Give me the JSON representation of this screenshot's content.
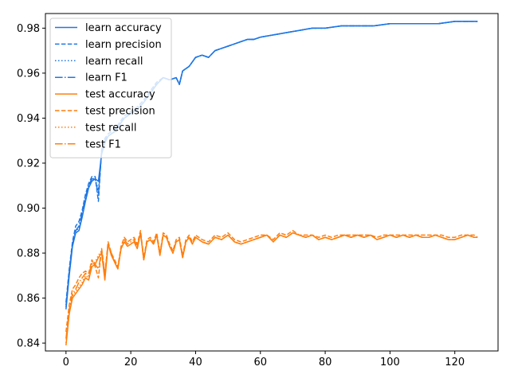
{
  "chart_data": {
    "type": "line",
    "xlim": [
      -6.35,
      133.35
    ],
    "ylim": [
      0.8365,
      0.9865
    ],
    "xticks": [
      0,
      20,
      40,
      60,
      80,
      100,
      120
    ],
    "yticks": [
      0.84,
      0.86,
      0.88,
      0.9,
      0.92,
      0.94,
      0.96,
      0.98
    ],
    "grid": false,
    "legend_position": "top-left",
    "colors": {
      "learn": "#1f77e4",
      "test": "#ff7f0e"
    },
    "series": [
      {
        "name": "learn accuracy",
        "color": "#1f77e4",
        "dash": "solid",
        "x": [
          0,
          1,
          2,
          3,
          4,
          5,
          6,
          7,
          8,
          9,
          10,
          11,
          12,
          13,
          14,
          15,
          16,
          18,
          20,
          22,
          24,
          26,
          28,
          30,
          32,
          34,
          35,
          36,
          38,
          40,
          42,
          44,
          46,
          48,
          50,
          52,
          54,
          56,
          58,
          60,
          64,
          68,
          72,
          76,
          80,
          85,
          90,
          95,
          100,
          105,
          110,
          115,
          120,
          127
        ],
        "y": [
          0.855,
          0.87,
          0.883,
          0.889,
          0.89,
          0.896,
          0.903,
          0.909,
          0.912,
          0.913,
          0.912,
          0.924,
          0.929,
          0.932,
          0.933,
          0.934,
          0.936,
          0.94,
          0.942,
          0.944,
          0.947,
          0.951,
          0.955,
          0.958,
          0.957,
          0.958,
          0.955,
          0.961,
          0.963,
          0.967,
          0.968,
          0.967,
          0.97,
          0.971,
          0.972,
          0.973,
          0.974,
          0.975,
          0.975,
          0.976,
          0.977,
          0.978,
          0.979,
          0.98,
          0.98,
          0.981,
          0.981,
          0.981,
          0.982,
          0.982,
          0.982,
          0.982,
          0.983,
          0.983
        ]
      },
      {
        "name": "learn precision",
        "color": "#1f77e4",
        "dash": "dashed",
        "x": [
          0,
          1,
          2,
          3,
          4,
          5,
          6,
          7,
          8,
          9,
          10,
          11,
          12,
          13,
          14,
          15,
          16,
          18,
          20,
          22,
          24,
          26,
          28,
          30,
          32,
          34,
          35,
          36,
          38,
          40,
          42,
          44,
          46,
          48,
          50,
          52,
          54,
          56,
          58,
          60,
          64,
          68,
          72,
          76,
          80,
          85,
          90,
          95,
          100,
          105,
          110,
          115,
          120,
          127
        ],
        "y": [
          0.858,
          0.873,
          0.885,
          0.892,
          0.894,
          0.899,
          0.906,
          0.911,
          0.914,
          0.914,
          0.903,
          0.926,
          0.931,
          0.933,
          0.934,
          0.935,
          0.937,
          0.941,
          0.943,
          0.945,
          0.948,
          0.952,
          0.956,
          0.958,
          0.957,
          0.958,
          0.955,
          0.961,
          0.963,
          0.967,
          0.968,
          0.967,
          0.97,
          0.971,
          0.972,
          0.973,
          0.974,
          0.975,
          0.975,
          0.976,
          0.977,
          0.978,
          0.979,
          0.98,
          0.98,
          0.981,
          0.981,
          0.981,
          0.982,
          0.982,
          0.982,
          0.982,
          0.983,
          0.983
        ]
      },
      {
        "name": "learn recall",
        "color": "#1f77e4",
        "dash": "dotted",
        "x": [
          0,
          1,
          2,
          3,
          4,
          5,
          6,
          7,
          8,
          9,
          10,
          11,
          12,
          13,
          14,
          15,
          16,
          18,
          20,
          22,
          24,
          26,
          28,
          30,
          32,
          34,
          35,
          36,
          38,
          40,
          42,
          44,
          46,
          48,
          50,
          52,
          54,
          56,
          58,
          60,
          64,
          68,
          72,
          76,
          80,
          85,
          90,
          95,
          100,
          105,
          110,
          115,
          120,
          127
        ],
        "y": [
          0.857,
          0.872,
          0.884,
          0.89,
          0.891,
          0.897,
          0.904,
          0.91,
          0.913,
          0.913,
          0.908,
          0.925,
          0.93,
          0.932,
          0.933,
          0.934,
          0.936,
          0.94,
          0.942,
          0.944,
          0.947,
          0.951,
          0.955,
          0.958,
          0.957,
          0.958,
          0.955,
          0.961,
          0.963,
          0.967,
          0.968,
          0.967,
          0.97,
          0.971,
          0.972,
          0.973,
          0.974,
          0.975,
          0.975,
          0.976,
          0.977,
          0.978,
          0.979,
          0.98,
          0.98,
          0.981,
          0.981,
          0.981,
          0.982,
          0.982,
          0.982,
          0.982,
          0.983,
          0.983
        ]
      },
      {
        "name": "learn F1",
        "color": "#1f77e4",
        "dash": "dashdot",
        "x": [
          0,
          1,
          2,
          3,
          4,
          5,
          6,
          7,
          8,
          9,
          10,
          11,
          12,
          13,
          14,
          15,
          16,
          18,
          20,
          22,
          24,
          26,
          28,
          30,
          32,
          34,
          35,
          36,
          38,
          40,
          42,
          44,
          46,
          48,
          50,
          52,
          54,
          56,
          58,
          60,
          64,
          68,
          72,
          76,
          80,
          85,
          90,
          95,
          100,
          105,
          110,
          115,
          120,
          127
        ],
        "y": [
          0.856,
          0.871,
          0.884,
          0.89,
          0.892,
          0.898,
          0.905,
          0.91,
          0.913,
          0.913,
          0.906,
          0.925,
          0.93,
          0.932,
          0.933,
          0.934,
          0.936,
          0.94,
          0.942,
          0.944,
          0.947,
          0.951,
          0.955,
          0.958,
          0.957,
          0.958,
          0.955,
          0.961,
          0.963,
          0.967,
          0.968,
          0.967,
          0.97,
          0.971,
          0.972,
          0.973,
          0.974,
          0.975,
          0.975,
          0.976,
          0.977,
          0.978,
          0.979,
          0.98,
          0.98,
          0.981,
          0.981,
          0.981,
          0.982,
          0.982,
          0.982,
          0.982,
          0.983,
          0.983
        ]
      },
      {
        "name": "test accuracy",
        "color": "#ff7f0e",
        "dash": "solid",
        "x": [
          0,
          1,
          2,
          3,
          4,
          5,
          6,
          7,
          8,
          9,
          10,
          11,
          12,
          13,
          14,
          15,
          16,
          17,
          18,
          19,
          20,
          21,
          22,
          23,
          24,
          25,
          26,
          27,
          28,
          29,
          30,
          31,
          32,
          33,
          34,
          35,
          36,
          37,
          38,
          39,
          40,
          42,
          44,
          46,
          48,
          50,
          52,
          54,
          56,
          58,
          60,
          62,
          64,
          66,
          68,
          70,
          72,
          74,
          76,
          78,
          80,
          82,
          84,
          86,
          88,
          90,
          92,
          94,
          96,
          98,
          100,
          102,
          104,
          106,
          108,
          110,
          112,
          114,
          116,
          118,
          120,
          122,
          124,
          126,
          127
        ],
        "y": [
          0.839,
          0.853,
          0.86,
          0.862,
          0.864,
          0.866,
          0.869,
          0.868,
          0.874,
          0.875,
          0.878,
          0.88,
          0.868,
          0.884,
          0.879,
          0.876,
          0.873,
          0.882,
          0.885,
          0.883,
          0.884,
          0.885,
          0.882,
          0.889,
          0.877,
          0.885,
          0.886,
          0.884,
          0.888,
          0.879,
          0.888,
          0.887,
          0.883,
          0.88,
          0.885,
          0.886,
          0.878,
          0.885,
          0.887,
          0.884,
          0.887,
          0.885,
          0.884,
          0.887,
          0.886,
          0.888,
          0.885,
          0.884,
          0.885,
          0.886,
          0.887,
          0.888,
          0.885,
          0.888,
          0.887,
          0.889,
          0.888,
          0.887,
          0.888,
          0.886,
          0.887,
          0.886,
          0.887,
          0.888,
          0.887,
          0.888,
          0.887,
          0.888,
          0.886,
          0.887,
          0.888,
          0.887,
          0.888,
          0.887,
          0.888,
          0.887,
          0.887,
          0.888,
          0.887,
          0.886,
          0.886,
          0.887,
          0.888,
          0.887,
          0.887
        ]
      },
      {
        "name": "test precision",
        "color": "#ff7f0e",
        "dash": "dashed",
        "x": [
          0,
          1,
          2,
          3,
          4,
          5,
          6,
          7,
          8,
          9,
          10,
          11,
          12,
          13,
          14,
          15,
          16,
          17,
          18,
          19,
          20,
          21,
          22,
          23,
          24,
          25,
          26,
          27,
          28,
          29,
          30,
          31,
          32,
          33,
          34,
          35,
          36,
          37,
          38,
          39,
          40,
          42,
          44,
          46,
          48,
          50,
          52,
          54,
          56,
          58,
          60,
          62,
          64,
          66,
          68,
          70,
          72,
          74,
          76,
          78,
          80,
          82,
          84,
          86,
          88,
          90,
          92,
          94,
          96,
          98,
          100,
          102,
          104,
          106,
          108,
          110,
          112,
          114,
          116,
          118,
          120,
          122,
          124,
          126,
          127
        ],
        "y": [
          0.845,
          0.857,
          0.864,
          0.866,
          0.869,
          0.871,
          0.872,
          0.871,
          0.877,
          0.874,
          0.869,
          0.882,
          0.871,
          0.885,
          0.88,
          0.877,
          0.874,
          0.883,
          0.887,
          0.885,
          0.886,
          0.887,
          0.884,
          0.89,
          0.878,
          0.886,
          0.887,
          0.885,
          0.889,
          0.88,
          0.889,
          0.888,
          0.884,
          0.881,
          0.886,
          0.887,
          0.879,
          0.886,
          0.888,
          0.885,
          0.888,
          0.886,
          0.885,
          0.888,
          0.887,
          0.889,
          0.886,
          0.885,
          0.886,
          0.887,
          0.888,
          0.888,
          0.886,
          0.889,
          0.888,
          0.89,
          0.888,
          0.888,
          0.888,
          0.887,
          0.888,
          0.887,
          0.888,
          0.888,
          0.888,
          0.888,
          0.888,
          0.888,
          0.887,
          0.888,
          0.888,
          0.888,
          0.888,
          0.888,
          0.888,
          0.888,
          0.888,
          0.888,
          0.888,
          0.887,
          0.887,
          0.888,
          0.888,
          0.888,
          0.887
        ]
      },
      {
        "name": "test recall",
        "color": "#ff7f0e",
        "dash": "dotted",
        "x": [
          0,
          1,
          2,
          3,
          4,
          5,
          6,
          7,
          8,
          9,
          10,
          11,
          12,
          13,
          14,
          15,
          16,
          17,
          18,
          19,
          20,
          21,
          22,
          23,
          24,
          25,
          26,
          27,
          28,
          29,
          30,
          31,
          32,
          33,
          34,
          35,
          36,
          37,
          38,
          39,
          40,
          42,
          44,
          46,
          48,
          50,
          52,
          54,
          56,
          58,
          60,
          62,
          64,
          66,
          68,
          70,
          72,
          74,
          76,
          78,
          80,
          82,
          84,
          86,
          88,
          90,
          92,
          94,
          96,
          98,
          100,
          102,
          104,
          106,
          108,
          110,
          112,
          114,
          116,
          118,
          120,
          122,
          124,
          126,
          127
        ],
        "y": [
          0.84,
          0.854,
          0.861,
          0.863,
          0.865,
          0.867,
          0.87,
          0.869,
          0.875,
          0.876,
          0.879,
          0.881,
          0.869,
          0.884,
          0.879,
          0.876,
          0.873,
          0.882,
          0.885,
          0.883,
          0.884,
          0.885,
          0.882,
          0.889,
          0.877,
          0.885,
          0.886,
          0.884,
          0.888,
          0.879,
          0.888,
          0.887,
          0.883,
          0.88,
          0.885,
          0.886,
          0.878,
          0.885,
          0.887,
          0.884,
          0.887,
          0.885,
          0.884,
          0.887,
          0.886,
          0.888,
          0.885,
          0.884,
          0.885,
          0.886,
          0.887,
          0.888,
          0.885,
          0.888,
          0.887,
          0.889,
          0.888,
          0.887,
          0.888,
          0.886,
          0.887,
          0.886,
          0.887,
          0.888,
          0.887,
          0.888,
          0.887,
          0.888,
          0.886,
          0.887,
          0.888,
          0.887,
          0.888,
          0.887,
          0.888,
          0.887,
          0.887,
          0.888,
          0.887,
          0.886,
          0.886,
          0.887,
          0.888,
          0.887,
          0.887
        ]
      },
      {
        "name": "test F1",
        "color": "#ff7f0e",
        "dash": "dashdot",
        "x": [
          0,
          1,
          2,
          3,
          4,
          5,
          6,
          7,
          8,
          9,
          10,
          11,
          12,
          13,
          14,
          15,
          16,
          17,
          18,
          19,
          20,
          21,
          22,
          23,
          24,
          25,
          26,
          27,
          28,
          29,
          30,
          31,
          32,
          33,
          34,
          35,
          36,
          37,
          38,
          39,
          40,
          42,
          44,
          46,
          48,
          50,
          52,
          54,
          56,
          58,
          60,
          62,
          64,
          66,
          68,
          70,
          72,
          74,
          76,
          78,
          80,
          82,
          84,
          86,
          88,
          90,
          92,
          94,
          96,
          98,
          100,
          102,
          104,
          106,
          108,
          110,
          112,
          114,
          116,
          118,
          120,
          122,
          124,
          126,
          127
        ],
        "y": [
          0.842,
          0.855,
          0.862,
          0.864,
          0.867,
          0.869,
          0.871,
          0.87,
          0.876,
          0.875,
          0.873,
          0.881,
          0.87,
          0.884,
          0.88,
          0.876,
          0.873,
          0.882,
          0.886,
          0.884,
          0.885,
          0.886,
          0.883,
          0.889,
          0.877,
          0.885,
          0.886,
          0.884,
          0.888,
          0.879,
          0.888,
          0.887,
          0.883,
          0.88,
          0.885,
          0.886,
          0.878,
          0.885,
          0.887,
          0.884,
          0.887,
          0.885,
          0.884,
          0.887,
          0.886,
          0.888,
          0.885,
          0.884,
          0.885,
          0.886,
          0.887,
          0.888,
          0.885,
          0.888,
          0.887,
          0.889,
          0.888,
          0.887,
          0.888,
          0.886,
          0.887,
          0.886,
          0.887,
          0.888,
          0.887,
          0.888,
          0.887,
          0.888,
          0.886,
          0.887,
          0.888,
          0.887,
          0.888,
          0.887,
          0.888,
          0.887,
          0.887,
          0.888,
          0.887,
          0.886,
          0.886,
          0.887,
          0.888,
          0.887,
          0.887
        ]
      }
    ]
  }
}
